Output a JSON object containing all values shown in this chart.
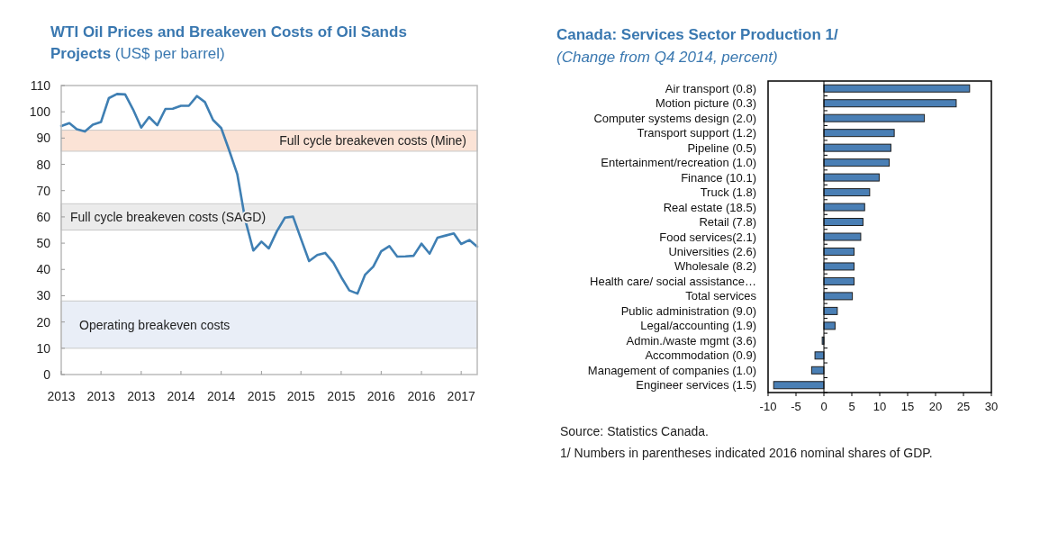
{
  "chart_data": [
    {
      "type": "line",
      "title": "WTI Oil Prices and Breakeven Costs of Oil Sands Projects",
      "subtitle": "(US$ per barrel)",
      "x": [
        "2013-01",
        "2013-02",
        "2013-03",
        "2013-04",
        "2013-05",
        "2013-06",
        "2013-07",
        "2013-08",
        "2013-09",
        "2013-10",
        "2013-11",
        "2013-12",
        "2014-01",
        "2014-02",
        "2014-03",
        "2014-04",
        "2014-05",
        "2014-06",
        "2014-07",
        "2014-08",
        "2014-09",
        "2014-10",
        "2014-11",
        "2014-12",
        "2015-01",
        "2015-02",
        "2015-03",
        "2015-04",
        "2015-05",
        "2015-06",
        "2015-07",
        "2015-08",
        "2015-09",
        "2015-10",
        "2015-11",
        "2015-12",
        "2016-01",
        "2016-02",
        "2016-03",
        "2016-04",
        "2016-05",
        "2016-06",
        "2016-07",
        "2016-08",
        "2016-09",
        "2016-10",
        "2016-11",
        "2016-12",
        "2017-01",
        "2017-02",
        "2017-03",
        "2017-04",
        "2017-05"
      ],
      "series": [
        {
          "color": "#3f7fb3",
          "values": [
            94.6,
            95.7,
            93.4,
            92.5,
            95.1,
            96.1,
            105.2,
            106.8,
            106.6,
            100.9,
            94.0,
            98.0,
            94.9,
            101.1,
            101.2,
            102.3,
            102.3,
            106.0,
            103.7,
            96.9,
            93.8,
            85.4,
            76.3,
            59,
            47.2,
            50.6,
            48.0,
            54.6,
            59.7,
            60.1,
            51.7,
            43.2,
            45.5,
            46.3,
            42.6,
            37.1,
            32.0,
            30.8,
            38.0,
            41.1,
            46.9,
            48.9,
            44.9,
            45.0,
            45.2,
            49.8,
            46.0,
            52.1,
            52.9,
            53.7,
            49.7,
            51.2,
            48.7
          ]
        }
      ],
      "xlim": [
        "2013-01",
        "2017-05"
      ],
      "xticks": [
        {
          "value": "2013-01",
          "label": "2013"
        },
        {
          "value": "2013-06",
          "label": "2013"
        },
        {
          "value": "2013-11",
          "label": "2013"
        },
        {
          "value": "2014-04",
          "label": "2014"
        },
        {
          "value": "2014-09",
          "label": "2014"
        },
        {
          "value": "2015-02",
          "label": "2015"
        },
        {
          "value": "2015-07",
          "label": "2015"
        },
        {
          "value": "2015-12",
          "label": "2015"
        },
        {
          "value": "2016-05",
          "label": "2016"
        },
        {
          "value": "2016-10",
          "label": "2016"
        },
        {
          "value": "2017-03",
          "label": "2017"
        }
      ],
      "ylim": [
        0,
        110
      ],
      "yticks": [
        0,
        10,
        20,
        30,
        40,
        50,
        60,
        70,
        80,
        90,
        100,
        110
      ],
      "bands": [
        {
          "axis": "y",
          "from": 85,
          "to": 93,
          "label": "Full cycle breakeven costs (Mine)",
          "color": "#fbe3d6"
        },
        {
          "axis": "y",
          "from": 55,
          "to": 65,
          "label": "Full cycle breakeven costs (SAGD)",
          "color": "#ebebeb"
        },
        {
          "axis": "y",
          "from": 10,
          "to": 28,
          "label": "Operating breakeven costs",
          "color": "#e9eef7"
        }
      ]
    },
    {
      "type": "bar",
      "orientation": "horizontal",
      "title": "Canada: Services Sector Production 1/",
      "subtitle": "(Change from Q4 2014, percent)",
      "categories": [
        "Air transport (0.8)",
        "Motion picture (0.3)",
        "Computer systems design (2.0)",
        "Transport support (1.2)",
        "Pipeline (0.5)",
        "Entertainment/recreation (1.0)",
        "Finance (10.1)",
        "Truck (1.8)",
        "Real estate (18.5)",
        "Retail (7.8)",
        "Food services(2.1)",
        "Universities (2.6)",
        "Wholesale (8.2)",
        "Health care/ social assistance…",
        "Total services",
        "Public administration (9.0)",
        "Legal/accounting (1.9)",
        "Admin./waste mgmt (3.6)",
        "Accommodation (0.9)",
        "Management of companies (1.0)",
        "Engineer services (1.5)"
      ],
      "values": [
        26.1,
        23.7,
        18.0,
        12.6,
        12.0,
        11.7,
        9.9,
        8.2,
        7.3,
        7.0,
        6.6,
        5.4,
        5.4,
        5.4,
        5.1,
        2.4,
        2.0,
        -0.3,
        -1.6,
        -2.2,
        -9.0
      ],
      "color": "#4a7fb5",
      "xlim": [
        -10,
        30
      ],
      "xticks": [
        -10,
        -5,
        0,
        5,
        10,
        15,
        20,
        25,
        30
      ],
      "annotations": [
        "Source: Statistics Canada.",
        "1/ Numbers in parentheses indicated 2016 nominal shares of GDP."
      ]
    }
  ]
}
